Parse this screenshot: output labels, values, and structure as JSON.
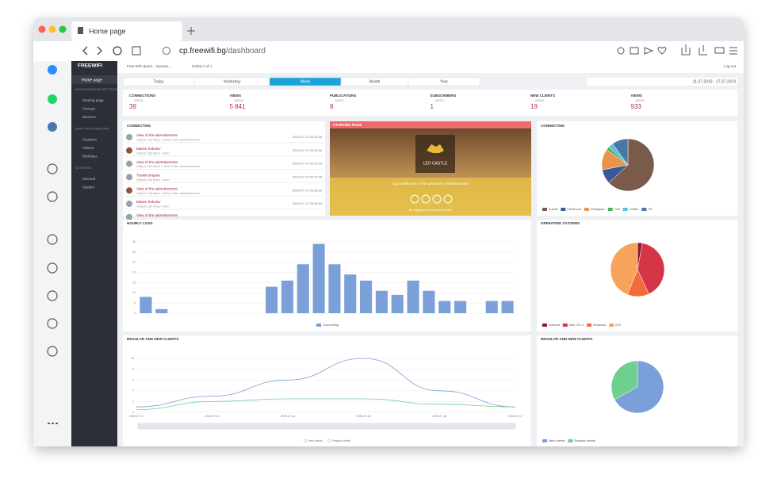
{
  "browser": {
    "tab_title": "Home page",
    "url_host": "cp.freewifi.bg",
    "url_path": "/dashboard"
  },
  "sidebar": {
    "brand": "FREEWIFI",
    "home": "Home page",
    "sections": [
      {
        "title": "AUTHORIZATION SETTINGS",
        "items": [
          "Starting page",
          "Surveys",
          "Banners"
        ]
      },
      {
        "title": "ANALYTICS AND DATA",
        "items": [
          "Statistics",
          "Visitors",
          "Birthdays"
        ]
      },
      {
        "title": "SETTINGS",
        "items": [
          "General",
          "System"
        ]
      }
    ]
  },
  "topbar": {
    "location": "Free WiFi guest... Noceas...",
    "online": "Online:1 of 1",
    "logout": "Log out"
  },
  "periods": {
    "items": [
      "Today",
      "Yesterday",
      "Week",
      "Month",
      "Year"
    ],
    "active": 2
  },
  "date_range": "11.07.2019 - 17.07.2019",
  "stats": [
    {
      "label": "CONNECTIONS",
      "period": "WEEK",
      "value": "39"
    },
    {
      "label": "VIEWS",
      "period": "WEEK",
      "value": "5 841"
    },
    {
      "label": "PUBLICATIONS",
      "period": "WEEK",
      "value": "8"
    },
    {
      "label": "SUBSCRIBERS",
      "period": "WEEK",
      "value": "1"
    },
    {
      "label": "NEW CLIENTS",
      "period": "WEEK",
      "value": "19"
    },
    {
      "label": "VIEWS",
      "period": "WEEK",
      "value": "933"
    }
  ],
  "connecting_feed": {
    "title": "CONNECTING",
    "items": [
      {
        "title": "View of the advertisement",
        "detail": "Visited 138 times / View of the advertisement",
        "time": "2019-07-17 09:19:00"
      },
      {
        "title": "Maxim Sokolov",
        "detail": "Visited 138 times / Auth",
        "time": "2019-07-17 09:19:00"
      },
      {
        "title": "View of the advertisement",
        "detail": "Visited 138 times / View of the advertisement",
        "time": "2019-07-17 09:17:00"
      },
      {
        "title": "Travelcompare",
        "detail": "Visited 138 times / Auth",
        "time": "2019-07-17 09:17:00"
      },
      {
        "title": "View of the advertisement",
        "detail": "Visited 138 times / View of the advertisement",
        "time": "2019-07-17 09:16:00"
      },
      {
        "title": "Maxim Sokolov",
        "detail": "Visited 138 times / Auth",
        "time": "2019-07-17 09:16:00"
      },
      {
        "title": "View of the advertisement"
      }
    ]
  },
  "starting_page": {
    "title": "STARTING PAGE",
    "brand": "LEO CASTLE",
    "login_text": "Log in with one of the options for Internet access",
    "terms": "By logging in you accept terms"
  },
  "connecting_pie": {
    "title": "CONNECTING",
    "labels": [
      "E-mail",
      "Facebook",
      "Instagram",
      "Call",
      "Twitter",
      "VK"
    ],
    "values": [
      63,
      9,
      13,
      2,
      3,
      10
    ],
    "colors": [
      "#7a5a4a",
      "#3b5998",
      "#e8944a",
      "#4caf50",
      "#5bc0de",
      "#4a76a8"
    ]
  },
  "hourly_load": {
    "title": "HOURLY LOAD",
    "legend": "Connecting",
    "color": "#7b9fd8",
    "values": [
      8,
      2,
      0,
      0,
      0,
      0,
      0,
      0,
      13,
      16,
      24,
      34,
      24,
      19,
      16,
      11,
      9,
      16,
      11,
      6,
      6,
      0,
      6,
      6
    ],
    "ylim": [
      0,
      35
    ],
    "yticks": [
      0,
      5,
      10,
      15,
      20,
      25,
      30,
      35
    ]
  },
  "os_pie": {
    "title": "OPERATING SYSTEMS",
    "labels": [
      "Android",
      "Mac OS X",
      "Windows",
      "iOS"
    ],
    "values": [
      3,
      40,
      13,
      44
    ],
    "colors": [
      "#8b1a2b",
      "#d63447",
      "#f26b38",
      "#f7a35c"
    ]
  },
  "clients_line": {
    "title": "REGULAR AND NEW CLIENTS",
    "categories": [
      "2019-07-12",
      "2019-07-13",
      "2019-07-14",
      "2019-07-15",
      "2019-07-16",
      "2019-07-17"
    ],
    "series": [
      {
        "name": "New clients",
        "color": "#7b9fd8",
        "values": [
          1,
          3,
          6,
          10,
          4,
          1
        ]
      },
      {
        "name": "Regular clients",
        "color": "#6fcf8f",
        "values": [
          0.5,
          2,
          2.5,
          2.5,
          1.5,
          1
        ]
      }
    ],
    "ylim": [
      0,
      10
    ],
    "yticks": [
      0,
      2,
      4,
      6,
      8,
      10
    ]
  },
  "clients_pie": {
    "title": "REGULAR AND NEW CLIENTS",
    "labels": [
      "New clients",
      "Regular clients"
    ],
    "values": [
      67,
      33
    ],
    "colors": [
      "#7b9fd8",
      "#6fcf8f"
    ]
  }
}
